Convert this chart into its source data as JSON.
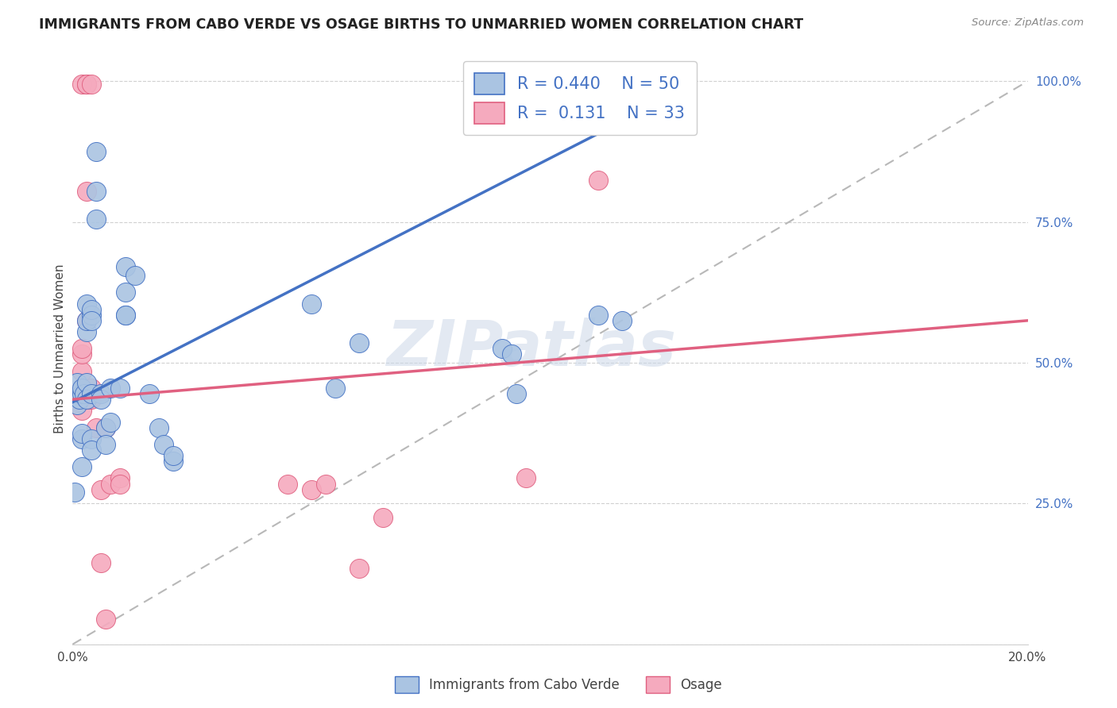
{
  "title": "IMMIGRANTS FROM CABO VERDE VS OSAGE BIRTHS TO UNMARRIED WOMEN CORRELATION CHART",
  "source": "Source: ZipAtlas.com",
  "xlabel_label": "Immigrants from Cabo Verde",
  "ylabel_label": "Births to Unmarried Women",
  "legend_label1": "Immigrants from Cabo Verde",
  "legend_label2": "Osage",
  "R1": 0.44,
  "N1": 50,
  "R2": 0.131,
  "N2": 33,
  "x_min": 0.0,
  "x_max": 0.2,
  "y_min": 0.0,
  "y_max": 1.05,
  "color_blue": "#aac4e2",
  "color_pink": "#f5aabe",
  "line_color_blue": "#4472c4",
  "line_color_pink": "#e06080",
  "line_color_dash": "#b8b8b8",
  "watermark": "ZIPatlas",
  "blue_line": [
    0.0,
    0.43,
    0.12,
    0.95
  ],
  "pink_line": [
    0.0,
    0.435,
    0.2,
    0.575
  ],
  "blue_points": [
    [
      0.0005,
      0.27
    ],
    [
      0.001,
      0.425
    ],
    [
      0.001,
      0.445
    ],
    [
      0.001,
      0.465
    ],
    [
      0.0015,
      0.435
    ],
    [
      0.002,
      0.445
    ],
    [
      0.002,
      0.455
    ],
    [
      0.002,
      0.365
    ],
    [
      0.002,
      0.315
    ],
    [
      0.002,
      0.375
    ],
    [
      0.0025,
      0.445
    ],
    [
      0.003,
      0.465
    ],
    [
      0.003,
      0.435
    ],
    [
      0.003,
      0.555
    ],
    [
      0.003,
      0.575
    ],
    [
      0.003,
      0.605
    ],
    [
      0.004,
      0.445
    ],
    [
      0.004,
      0.585
    ],
    [
      0.004,
      0.595
    ],
    [
      0.004,
      0.575
    ],
    [
      0.004,
      0.365
    ],
    [
      0.004,
      0.345
    ],
    [
      0.005,
      0.755
    ],
    [
      0.005,
      0.805
    ],
    [
      0.005,
      0.875
    ],
    [
      0.006,
      0.445
    ],
    [
      0.006,
      0.435
    ],
    [
      0.007,
      0.385
    ],
    [
      0.007,
      0.355
    ],
    [
      0.008,
      0.395
    ],
    [
      0.008,
      0.455
    ],
    [
      0.01,
      0.455
    ],
    [
      0.011,
      0.625
    ],
    [
      0.011,
      0.67
    ],
    [
      0.011,
      0.585
    ],
    [
      0.011,
      0.585
    ],
    [
      0.013,
      0.655
    ],
    [
      0.016,
      0.445
    ],
    [
      0.018,
      0.385
    ],
    [
      0.019,
      0.355
    ],
    [
      0.021,
      0.325
    ],
    [
      0.021,
      0.335
    ],
    [
      0.05,
      0.605
    ],
    [
      0.055,
      0.455
    ],
    [
      0.06,
      0.535
    ],
    [
      0.09,
      0.525
    ],
    [
      0.092,
      0.515
    ],
    [
      0.093,
      0.445
    ],
    [
      0.11,
      0.585
    ],
    [
      0.115,
      0.575
    ]
  ],
  "pink_points": [
    [
      0.001,
      0.445
    ],
    [
      0.0015,
      0.435
    ],
    [
      0.002,
      0.455
    ],
    [
      0.002,
      0.995
    ],
    [
      0.003,
      0.995
    ],
    [
      0.003,
      0.995
    ],
    [
      0.004,
      0.995
    ],
    [
      0.002,
      0.485
    ],
    [
      0.002,
      0.515
    ],
    [
      0.002,
      0.525
    ],
    [
      0.002,
      0.445
    ],
    [
      0.002,
      0.415
    ],
    [
      0.003,
      0.575
    ],
    [
      0.003,
      0.805
    ],
    [
      0.0035,
      0.435
    ],
    [
      0.004,
      0.445
    ],
    [
      0.004,
      0.455
    ],
    [
      0.004,
      0.435
    ],
    [
      0.005,
      0.385
    ],
    [
      0.006,
      0.275
    ],
    [
      0.006,
      0.145
    ],
    [
      0.007,
      0.045
    ],
    [
      0.007,
      0.385
    ],
    [
      0.008,
      0.285
    ],
    [
      0.01,
      0.295
    ],
    [
      0.01,
      0.285
    ],
    [
      0.045,
      0.285
    ],
    [
      0.05,
      0.275
    ],
    [
      0.053,
      0.285
    ],
    [
      0.06,
      0.135
    ],
    [
      0.065,
      0.225
    ],
    [
      0.095,
      0.295
    ],
    [
      0.11,
      0.825
    ]
  ]
}
